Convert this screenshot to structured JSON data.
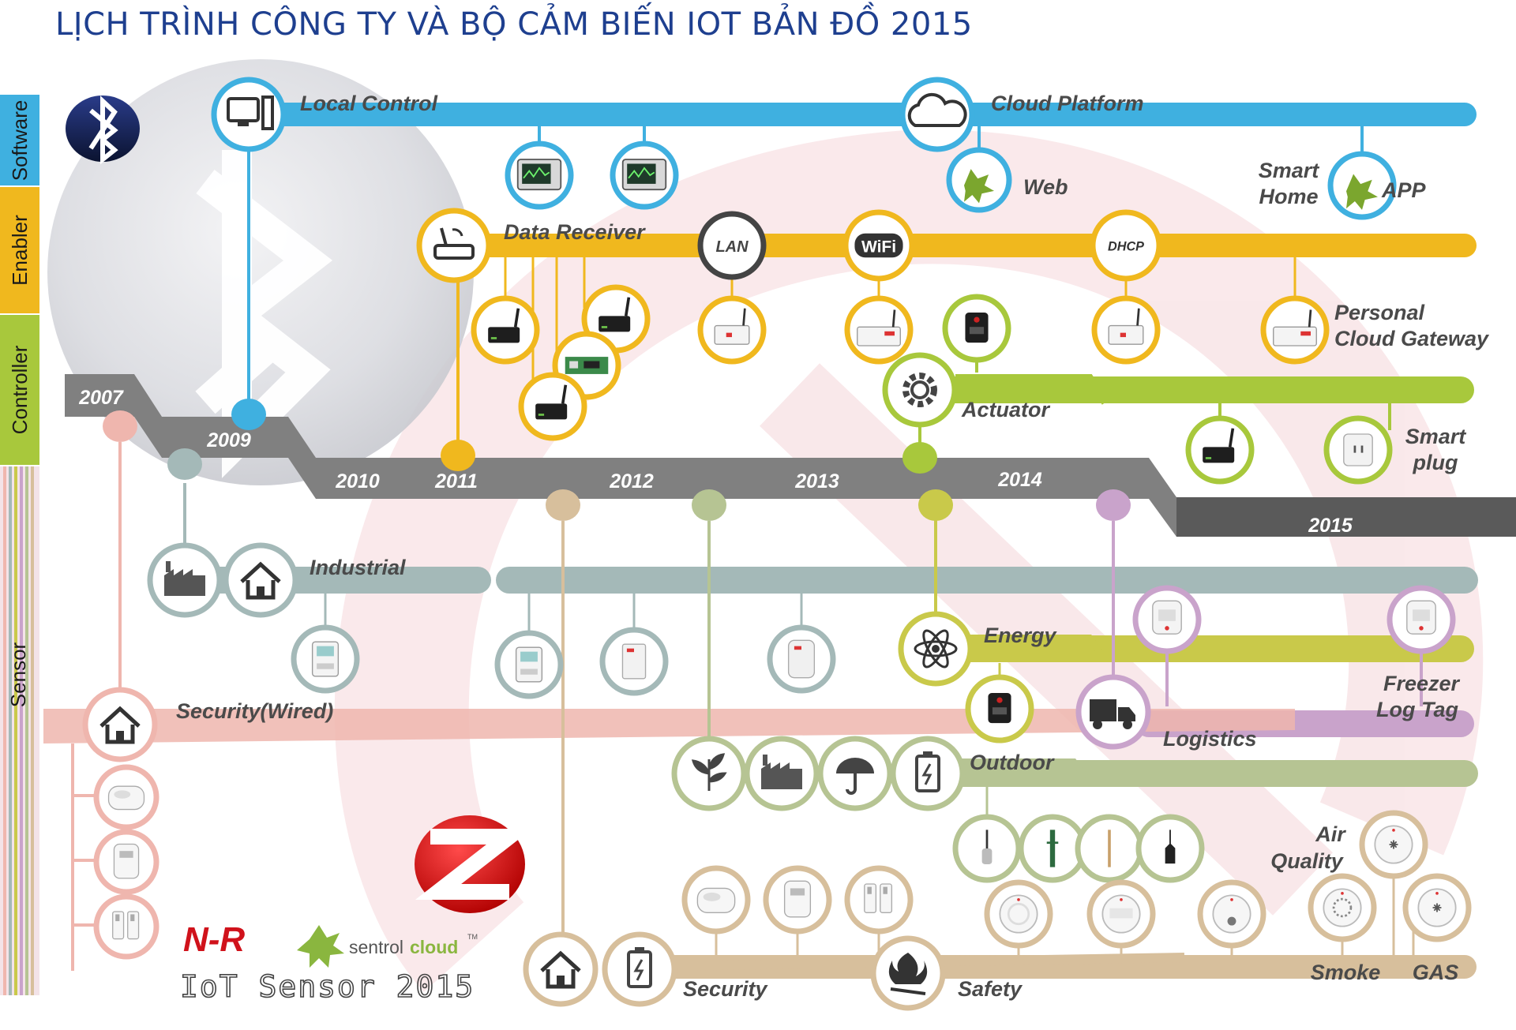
{
  "title": "LỊCH TRÌNH CÔNG TY VÀ BỘ CẢM BIẾN IOT BẢN ĐỒ 2015",
  "categories": [
    "Software",
    "Enabler",
    "Controller",
    "Sensor"
  ],
  "years": [
    "2007",
    "2009",
    "2010",
    "2011",
    "2012",
    "2013",
    "2014",
    "2015"
  ],
  "tracks": {
    "local_control": "Local Control",
    "cloud_platform": "Cloud Platform",
    "web": "Web",
    "smart_home": [
      "Smart",
      "Home"
    ],
    "app": "APP",
    "data_receiver": "Data Receiver",
    "lan": "LAN",
    "wifi": "WiFi",
    "dhcp": "DHCP",
    "personal_cloud_gateway": [
      "Personal",
      "Cloud Gateway"
    ],
    "actuator": "Actuator",
    "smart_plug": [
      "Smart",
      "plug"
    ],
    "industrial": "Industrial",
    "energy": "Energy",
    "freezer_log_tag": [
      "Freezer",
      "Log Tag"
    ],
    "security_wired": "Security(Wired)",
    "logistics": "Logistics",
    "outdoor": "Outdoor",
    "air_quality": [
      "Air",
      "Quality"
    ],
    "security": "Security",
    "safety": "Safety",
    "smoke": "Smoke",
    "gas": "GAS"
  },
  "branding": {
    "nr_logo": "N-R",
    "sentrol_a": "sentrol",
    "sentrol_b": "cloud",
    "tm": "TM",
    "iot_sensor": "IoT Sensor 2015"
  },
  "colors": {
    "software": "#3fb0e0",
    "enabler": "#f0b81e",
    "controller": "#a8c83c",
    "timeline": "#7a7a7a",
    "industrial": "#a4b9b8",
    "energy": "#c9c94a",
    "logistics": "#c9a3cb",
    "security_wired": "#efb6ae",
    "outdoor": "#b6c493",
    "security_safety": "#d7bf9c",
    "title": "#1e3f8f"
  }
}
